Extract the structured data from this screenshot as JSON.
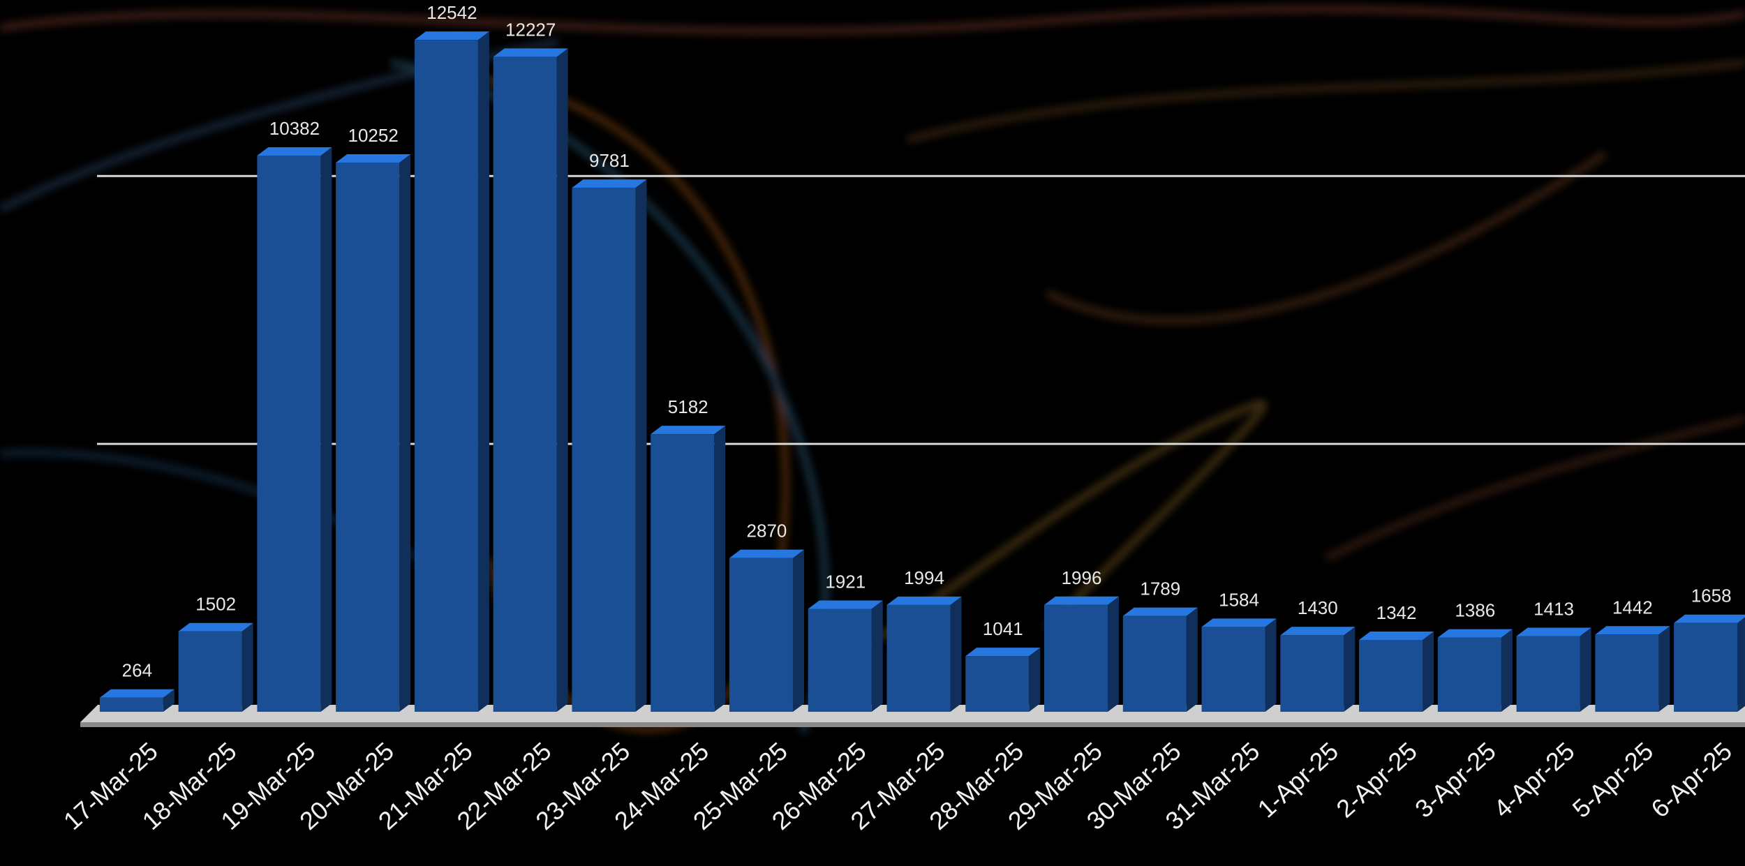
{
  "chart_data": {
    "type": "bar",
    "categories": [
      "17-Mar-25",
      "18-Mar-25",
      "19-Mar-25",
      "20-Mar-25",
      "21-Mar-25",
      "22-Mar-25",
      "23-Mar-25",
      "24-Mar-25",
      "25-Mar-25",
      "26-Mar-25",
      "27-Mar-25",
      "28-Mar-25",
      "29-Mar-25",
      "30-Mar-25",
      "31-Mar-25",
      "1-Apr-25",
      "2-Apr-25",
      "3-Apr-25",
      "4-Apr-25",
      "5-Apr-25",
      "6-Apr-25"
    ],
    "values": [
      264,
      1502,
      10382,
      10252,
      12542,
      12227,
      9781,
      5182,
      2870,
      1921,
      1994,
      1041,
      1996,
      1789,
      1584,
      1430,
      1342,
      1386,
      1413,
      1442,
      1658
    ],
    "color": "#1a4f96",
    "ylim": [
      0,
      13000
    ],
    "yticks": [
      5000,
      10000
    ],
    "grid": true
  }
}
